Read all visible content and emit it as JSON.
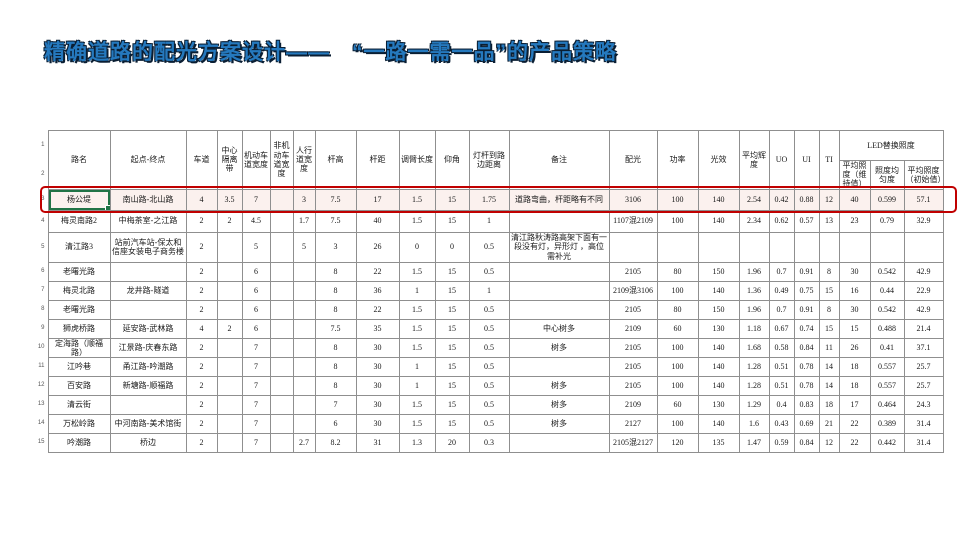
{
  "slide": {
    "title": "精确道路的配光方案设计——　“一路一需一品”的产品策略"
  },
  "colors": {
    "title_blue": "#2579BE",
    "annotation_red": "#C00000",
    "cell_selection_green": "#217346",
    "grid_line": "#8F8F8F"
  },
  "table": {
    "corner_row_numbers": [
      "1",
      "2"
    ],
    "columns": [
      {
        "label": "路名"
      },
      {
        "label": "起点-终点"
      },
      {
        "label": "车道"
      },
      {
        "label": "中心隔离带"
      },
      {
        "label": "机动车道宽度"
      },
      {
        "label": "非机动车道宽度"
      },
      {
        "label": "人行道宽度"
      },
      {
        "label": "杆高"
      },
      {
        "label": "杆距"
      },
      {
        "label": "调臂长度"
      },
      {
        "label": "仰角"
      },
      {
        "label": "灯杆到路边距离"
      },
      {
        "label": "备注"
      },
      {
        "label": "配光"
      },
      {
        "label": "功率"
      },
      {
        "label": "光效"
      },
      {
        "label": "平均辉度"
      },
      {
        "label": "UO"
      },
      {
        "label": "UI"
      },
      {
        "label": "TI"
      },
      {
        "label": "LED替换照度",
        "colspan": 3
      }
    ],
    "sub_columns": [
      "平均照度（维持值）",
      "照度均匀度",
      "平均照度（初始值）"
    ],
    "rows": [
      {
        "num": "3",
        "highlight": true,
        "selected_cell": 0,
        "cells": [
          "杨公堤",
          "南山路-北山路",
          "4",
          "3.5",
          "7",
          "",
          "3",
          "7.5",
          "17",
          "1.5",
          "15",
          "1.75",
          "道路弯曲，杆距略有不同",
          "3106",
          "100",
          "140",
          "2.54",
          "0.42",
          "0.88",
          "12",
          "40",
          "0.599",
          "57.1"
        ]
      },
      {
        "num": "4",
        "cells": [
          "梅灵南路2",
          "中梅茶室-之江路",
          "2",
          "2",
          "4.5",
          "",
          "1.7",
          "7.5",
          "40",
          "1.5",
          "15",
          "1",
          "",
          "1107混2109",
          "100",
          "140",
          "2.34",
          "0.62",
          "0.57",
          "13",
          "23",
          "0.79",
          "32.9"
        ]
      },
      {
        "num": "5",
        "cells": [
          "清江路3",
          "站前汽车站-保太和信座女装电子商务楼",
          "2",
          "",
          "5",
          "",
          "5",
          "3",
          "26",
          "0",
          "0",
          "0.5",
          "清江路秋涛路高架下面有一段没有灯，异形灯 ，高位需补光",
          "",
          "",
          "",
          "",
          "",
          "",
          "",
          "",
          "",
          ""
        ]
      },
      {
        "num": "6",
        "cells": [
          "老曙光路",
          "",
          "2",
          "",
          "6",
          "",
          "",
          "8",
          "22",
          "1.5",
          "15",
          "0.5",
          "",
          "2105",
          "80",
          "150",
          "1.96",
          "0.7",
          "0.91",
          "8",
          "30",
          "0.542",
          "42.9"
        ]
      },
      {
        "num": "7",
        "cells": [
          "梅灵北路",
          "龙井路-隧道",
          "2",
          "",
          "6",
          "",
          "",
          "8",
          "36",
          "1",
          "15",
          "1",
          "",
          "2109混3106",
          "100",
          "140",
          "1.36",
          "0.49",
          "0.75",
          "15",
          "16",
          "0.44",
          "22.9"
        ]
      },
      {
        "num": "8",
        "cells": [
          "老曙光路",
          "",
          "2",
          "",
          "6",
          "",
          "",
          "8",
          "22",
          "1.5",
          "15",
          "0.5",
          "",
          "2105",
          "80",
          "150",
          "1.96",
          "0.7",
          "0.91",
          "8",
          "30",
          "0.542",
          "42.9"
        ]
      },
      {
        "num": "9",
        "cells": [
          "狮虎桥路",
          "延安路-武林路",
          "4",
          "2",
          "6",
          "",
          "",
          "7.5",
          "35",
          "1.5",
          "15",
          "0.5",
          "中心树多",
          "2109",
          "60",
          "130",
          "1.18",
          "0.67",
          "0.74",
          "15",
          "15",
          "0.488",
          "21.4"
        ]
      },
      {
        "num": "10",
        "cells": [
          "定海路（顺福路）",
          "江景路-庆春东路",
          "2",
          "",
          "7",
          "",
          "",
          "8",
          "30",
          "1.5",
          "15",
          "0.5",
          "树多",
          "2105",
          "100",
          "140",
          "1.68",
          "0.58",
          "0.84",
          "11",
          "26",
          "0.41",
          "37.1"
        ]
      },
      {
        "num": "11",
        "cells": [
          "江吟巷",
          "甬江路-吟潮路",
          "2",
          "",
          "7",
          "",
          "",
          "8",
          "30",
          "1",
          "15",
          "0.5",
          "",
          "2105",
          "100",
          "140",
          "1.28",
          "0.51",
          "0.78",
          "14",
          "18",
          "0.557",
          "25.7"
        ]
      },
      {
        "num": "12",
        "cells": [
          "百安路",
          "新塘路-顺福路",
          "2",
          "",
          "7",
          "",
          "",
          "8",
          "30",
          "1",
          "15",
          "0.5",
          "树多",
          "2105",
          "100",
          "140",
          "1.28",
          "0.51",
          "0.78",
          "14",
          "18",
          "0.557",
          "25.7"
        ]
      },
      {
        "num": "13",
        "cells": [
          "清云街",
          "",
          "2",
          "",
          "7",
          "",
          "",
          "7",
          "30",
          "1.5",
          "15",
          "0.5",
          "树多",
          "2109",
          "60",
          "130",
          "1.29",
          "0.4",
          "0.83",
          "18",
          "17",
          "0.464",
          "24.3"
        ]
      },
      {
        "num": "14",
        "cells": [
          "万松岭路",
          "中河南路-美术馆街",
          "2",
          "",
          "7",
          "",
          "",
          "6",
          "30",
          "1.5",
          "15",
          "0.5",
          "树多",
          "2127",
          "100",
          "140",
          "1.6",
          "0.43",
          "0.69",
          "21",
          "22",
          "0.389",
          "31.4"
        ]
      },
      {
        "num": "15",
        "cells": [
          "吟潮路",
          "桥边",
          "2",
          "",
          "7",
          "",
          "2.7",
          "8.2",
          "31",
          "1.3",
          "20",
          "0.3",
          "",
          "2105混2127",
          "120",
          "135",
          "1.47",
          "0.59",
          "0.84",
          "12",
          "22",
          "0.442",
          "31.4"
        ]
      }
    ]
  }
}
